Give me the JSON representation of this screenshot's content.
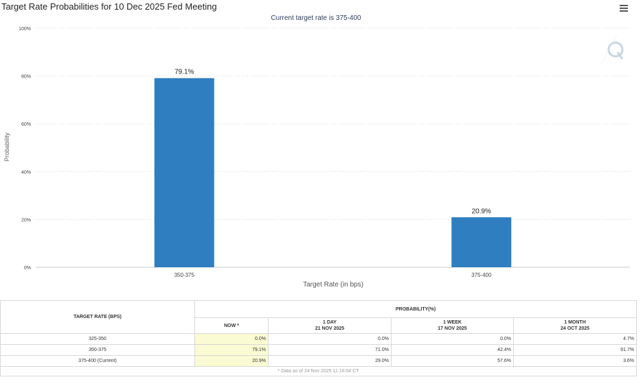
{
  "chart_data": {
    "type": "bar",
    "title": "Target Rate Probabilities for 10 Dec 2025 Fed Meeting",
    "subtitle": "Current target rate is 375-400",
    "xlabel": "Target Rate (in bps)",
    "ylabel": "Probability",
    "categories": [
      "350-375",
      "375-400"
    ],
    "values": [
      79.1,
      20.9
    ],
    "data_labels": [
      "79.1%",
      "20.9%"
    ],
    "yticks": [
      "0%",
      "20%",
      "40%",
      "60%",
      "80%",
      "100%"
    ],
    "ylim": [
      0,
      100
    ],
    "grid": true,
    "bar_color": "#2f7ec0"
  },
  "menu_icon": "hamburger-menu-icon",
  "watermark_icon": "q-watermark-icon",
  "table": {
    "target_rate_header": "TARGET RATE (BPS)",
    "probability_header": "PROBABILITY(%)",
    "columns": [
      {
        "line1": "NOW *",
        "line2": ""
      },
      {
        "line1": "1 DAY",
        "line2": "21 NOV 2025"
      },
      {
        "line1": "1 WEEK",
        "line2": "17 NOV 2025"
      },
      {
        "line1": "1 MONTH",
        "line2": "24 OCT 2025"
      }
    ],
    "rows": [
      {
        "rate": "325-350",
        "values": [
          "0.0%",
          "0.0%",
          "0.0%",
          "4.7%"
        ]
      },
      {
        "rate": "350-375",
        "values": [
          "79.1%",
          "71.0%",
          "42.4%",
          "91.7%"
        ]
      },
      {
        "rate": "375-400 (Current)",
        "values": [
          "20.9%",
          "29.0%",
          "57.6%",
          "3.6%"
        ]
      }
    ],
    "footnote": "* Data as of 24 Nov 2025 11:16:04 CT"
  }
}
